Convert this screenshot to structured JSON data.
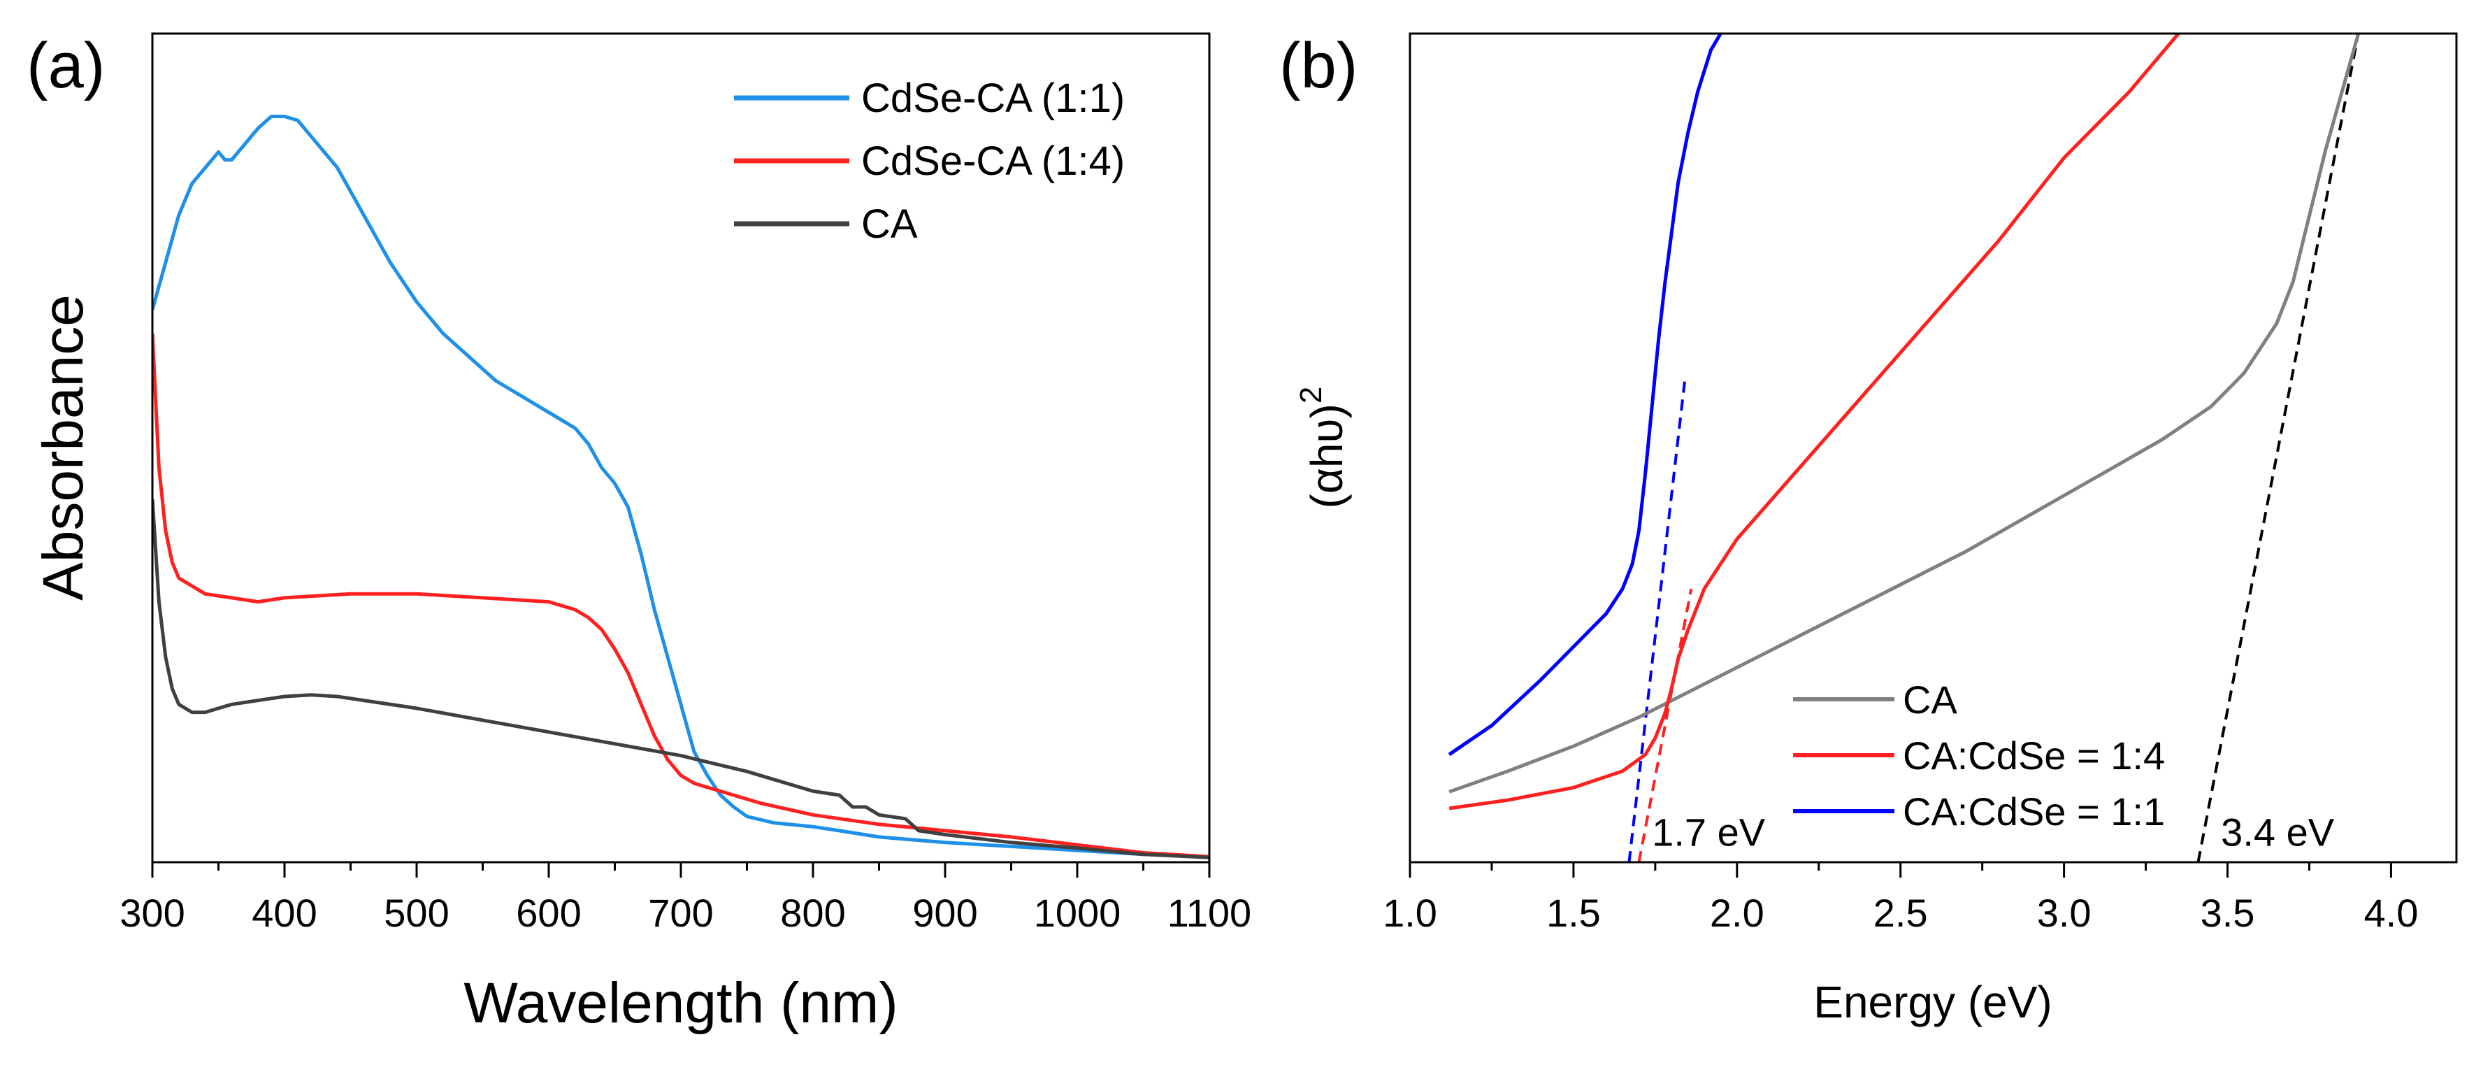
{
  "colors": {
    "blue_a": "#1E90E8",
    "blue_b": "#0000FF",
    "red": "#FF2020",
    "dark_gray": "#404040",
    "gray": "#808080"
  },
  "chart_data": [
    {
      "panel": "(a)",
      "type": "line",
      "xlabel": "Wavelength (nm)",
      "ylabel": "Absorbance",
      "xlim": [
        300,
        1100
      ],
      "ylim": [
        0,
        1.05
      ],
      "xticks": [
        300,
        400,
        500,
        600,
        700,
        800,
        900,
        1000,
        1100
      ],
      "y_ticks_shown": false,
      "legend_position": "top-right",
      "series": [
        {
          "name": "CdSe-CA (1:1)",
          "color": "#1E90E8",
          "legend_color": "#0000FF",
          "x": [
            300,
            310,
            320,
            330,
            340,
            350,
            355,
            360,
            370,
            380,
            390,
            400,
            410,
            420,
            440,
            460,
            480,
            500,
            520,
            540,
            560,
            580,
            600,
            620,
            630,
            640,
            650,
            660,
            670,
            680,
            690,
            700,
            710,
            720,
            730,
            740,
            750,
            770,
            800,
            820,
            850,
            900,
            950,
            1000,
            1050,
            1100
          ],
          "y": [
            0.7,
            0.76,
            0.82,
            0.86,
            0.88,
            0.9,
            0.89,
            0.89,
            0.91,
            0.93,
            0.945,
            0.945,
            0.94,
            0.92,
            0.88,
            0.82,
            0.76,
            0.71,
            0.67,
            0.64,
            0.61,
            0.59,
            0.57,
            0.55,
            0.53,
            0.5,
            0.48,
            0.45,
            0.39,
            0.32,
            0.26,
            0.2,
            0.14,
            0.11,
            0.085,
            0.07,
            0.058,
            0.05,
            0.045,
            0.04,
            0.032,
            0.025,
            0.02,
            0.015,
            0.01,
            0.007
          ]
        },
        {
          "name": "CdSe-CA (1:4)",
          "color": "#FF2020",
          "legend_color": "#FF2020",
          "x": [
            300,
            305,
            310,
            315,
            320,
            330,
            340,
            360,
            380,
            400,
            450,
            500,
            550,
            600,
            620,
            630,
            640,
            650,
            660,
            670,
            680,
            690,
            700,
            710,
            720,
            740,
            760,
            800,
            850,
            900,
            950,
            1000,
            1050,
            1100
          ],
          "y": [
            0.67,
            0.5,
            0.42,
            0.38,
            0.36,
            0.35,
            0.34,
            0.335,
            0.33,
            0.335,
            0.34,
            0.34,
            0.335,
            0.33,
            0.32,
            0.31,
            0.295,
            0.27,
            0.24,
            0.2,
            0.16,
            0.13,
            0.11,
            0.1,
            0.095,
            0.085,
            0.075,
            0.06,
            0.048,
            0.04,
            0.032,
            0.022,
            0.012,
            0.007
          ]
        },
        {
          "name": "CA",
          "color": "#404040",
          "legend_color": "#000000",
          "x": [
            300,
            305,
            310,
            315,
            320,
            330,
            340,
            350,
            360,
            380,
            400,
            420,
            440,
            460,
            500,
            550,
            600,
            650,
            700,
            750,
            800,
            820,
            830,
            840,
            850,
            870,
            880,
            900,
            950,
            1000,
            1050,
            1100
          ],
          "y": [
            0.46,
            0.33,
            0.26,
            0.22,
            0.2,
            0.19,
            0.19,
            0.195,
            0.2,
            0.205,
            0.21,
            0.212,
            0.21,
            0.205,
            0.195,
            0.18,
            0.165,
            0.15,
            0.135,
            0.115,
            0.09,
            0.085,
            0.07,
            0.07,
            0.06,
            0.055,
            0.04,
            0.035,
            0.025,
            0.018,
            0.01,
            0.006
          ]
        }
      ]
    },
    {
      "panel": "(b)",
      "type": "line",
      "xlabel": "Energy (eV)",
      "ylabel": "(αhυ)",
      "ylabel_superscript": "2",
      "xlim": [
        1.0,
        4.2
      ],
      "ylim": [
        0,
        1.0
      ],
      "xticks": [
        "1.0",
        "1.5",
        "2.0",
        "2.5",
        "3.0",
        "3.5",
        "4.0"
      ],
      "y_ticks_shown": false,
      "legend_position": "bottom-right",
      "series": [
        {
          "name": "CA",
          "color": "#808080",
          "legend_color": "#000000",
          "x": [
            1.12,
            1.3,
            1.5,
            1.7,
            1.9,
            2.1,
            2.3,
            2.5,
            2.7,
            2.9,
            3.1,
            3.3,
            3.45,
            3.55,
            3.65,
            3.7,
            3.75,
            3.8,
            3.85,
            3.9
          ],
          "y": [
            0.085,
            0.11,
            0.14,
            0.175,
            0.215,
            0.255,
            0.295,
            0.335,
            0.375,
            0.42,
            0.465,
            0.51,
            0.55,
            0.59,
            0.65,
            0.7,
            0.78,
            0.86,
            0.93,
            1.0
          ]
        },
        {
          "name": "CA:CdSe = 1:4",
          "color": "#FF2020",
          "legend_color": "#FF2020",
          "x": [
            1.12,
            1.3,
            1.5,
            1.65,
            1.72,
            1.75,
            1.78,
            1.8,
            1.82,
            1.85,
            1.9,
            2.0,
            2.2,
            2.4,
            2.6,
            2.8,
            3.0,
            3.2,
            3.35
          ],
          "y": [
            0.065,
            0.075,
            0.09,
            0.11,
            0.13,
            0.15,
            0.18,
            0.21,
            0.245,
            0.28,
            0.33,
            0.39,
            0.48,
            0.57,
            0.66,
            0.75,
            0.85,
            0.93,
            1.0
          ]
        },
        {
          "name": "CA:CdSe = 1:1",
          "color": "#0000FF",
          "legend_color": "#0000FF",
          "x": [
            1.12,
            1.25,
            1.4,
            1.5,
            1.6,
            1.65,
            1.68,
            1.7,
            1.72,
            1.74,
            1.76,
            1.78,
            1.8,
            1.82,
            1.85,
            1.88,
            1.92,
            1.95
          ],
          "y": [
            0.13,
            0.165,
            0.22,
            0.26,
            0.3,
            0.33,
            0.36,
            0.4,
            0.47,
            0.55,
            0.63,
            0.7,
            0.76,
            0.82,
            0.88,
            0.93,
            0.98,
            1.0
          ]
        }
      ],
      "extrapolations": [
        {
          "name": "blue-fit",
          "color": "#0000FF",
          "x": [
            1.67,
            1.84
          ],
          "y": [
            0.0,
            0.58
          ]
        },
        {
          "name": "red-fit",
          "color": "#FF2020",
          "x": [
            1.7,
            1.86
          ],
          "y": [
            0.0,
            0.33
          ]
        },
        {
          "name": "black-fit",
          "color": "#000000",
          "x": [
            3.41,
            3.9
          ],
          "y": [
            0.0,
            1.0
          ]
        }
      ],
      "annotations": [
        {
          "text": "1.7 eV",
          "x": 1.74,
          "y": 0.02
        },
        {
          "text": "3.4 eV",
          "x": 3.48,
          "y": 0.02
        }
      ]
    }
  ]
}
